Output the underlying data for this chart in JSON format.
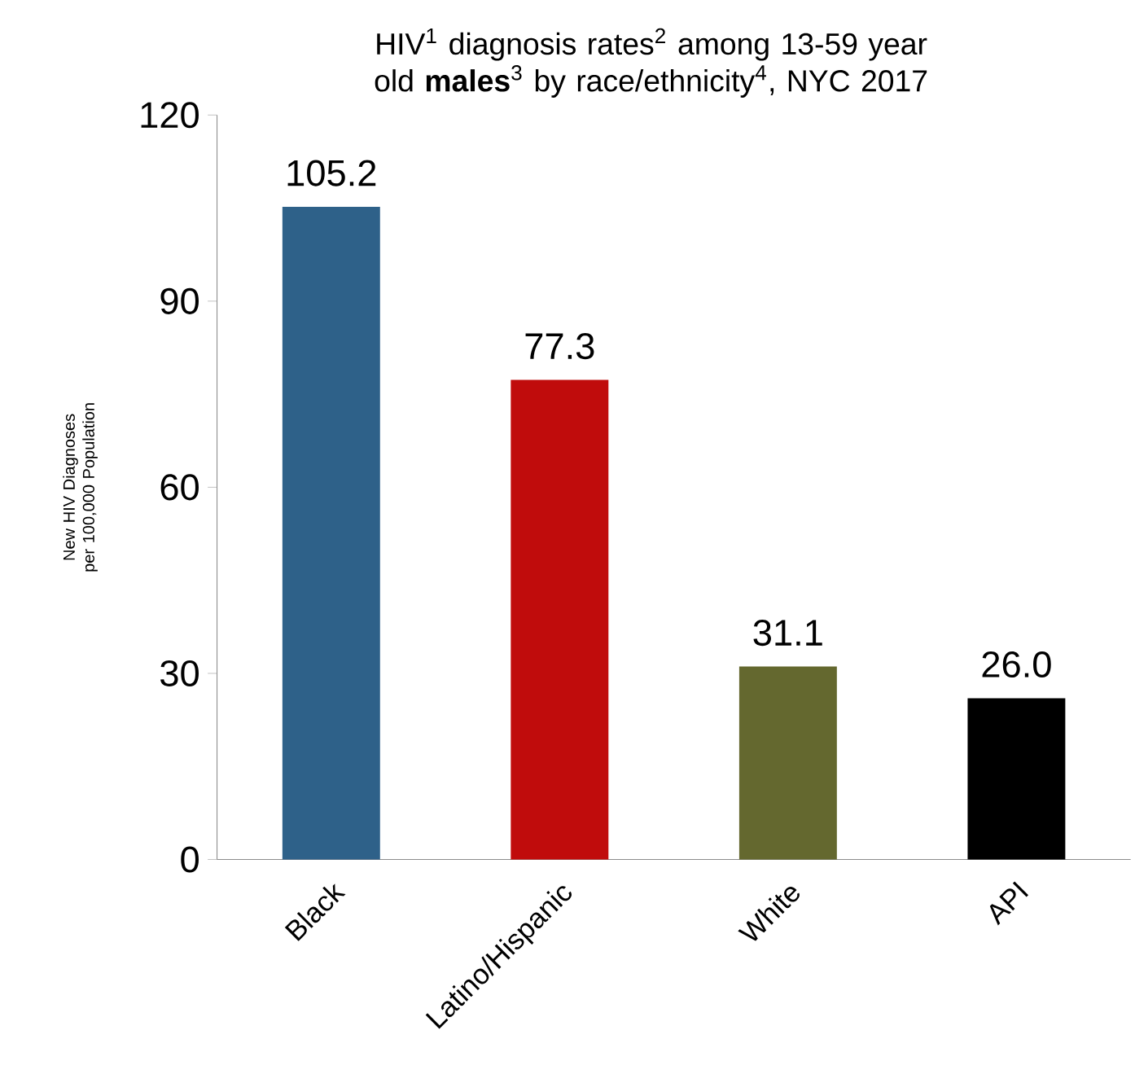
{
  "chart_data": {
    "type": "bar",
    "title": "HIV$^{1}$ diagnosis rates$^{2}$ among 13-59 year old **males**$^{3}$ by race/ethnicity$^{4}$, NYC 2017",
    "ylabel": "New HIV Diagnoses per 100,000 Population",
    "categories": [
      "Black",
      "Latino/Hispanic",
      "White",
      "API"
    ],
    "values": [
      105.2,
      77.3,
      31.1,
      26.0
    ],
    "colors": [
      "#2e6189",
      "#c00c0c",
      "#64682f",
      "#000000"
    ],
    "ylim": [
      0,
      120
    ],
    "yticks": [
      0,
      30,
      60,
      90,
      120
    ],
    "value_labels": [
      "105.2",
      "77.3",
      "31.1",
      "26.0"
    ]
  }
}
